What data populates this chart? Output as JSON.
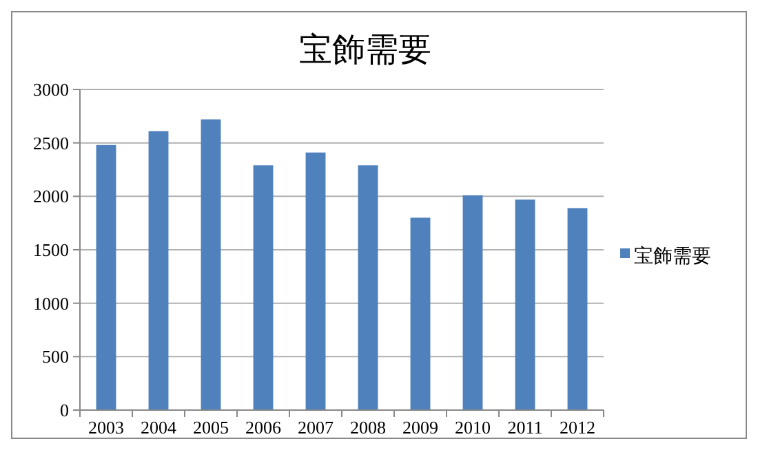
{
  "chart_data": {
    "type": "bar",
    "title": "宝飾需要",
    "categories": [
      "2003",
      "2004",
      "2005",
      "2006",
      "2007",
      "2008",
      "2009",
      "2010",
      "2011",
      "2012"
    ],
    "series": [
      {
        "name": "宝飾需要",
        "color": "#4f81bd",
        "values": [
          2480,
          2610,
          2720,
          2290,
          2410,
          2290,
          1800,
          2010,
          1970,
          1890
        ]
      }
    ],
    "ylim": [
      0,
      3000
    ],
    "yticks": [
      0,
      500,
      1000,
      1500,
      2000,
      2500,
      3000
    ],
    "grid": "y",
    "legend": "right"
  }
}
